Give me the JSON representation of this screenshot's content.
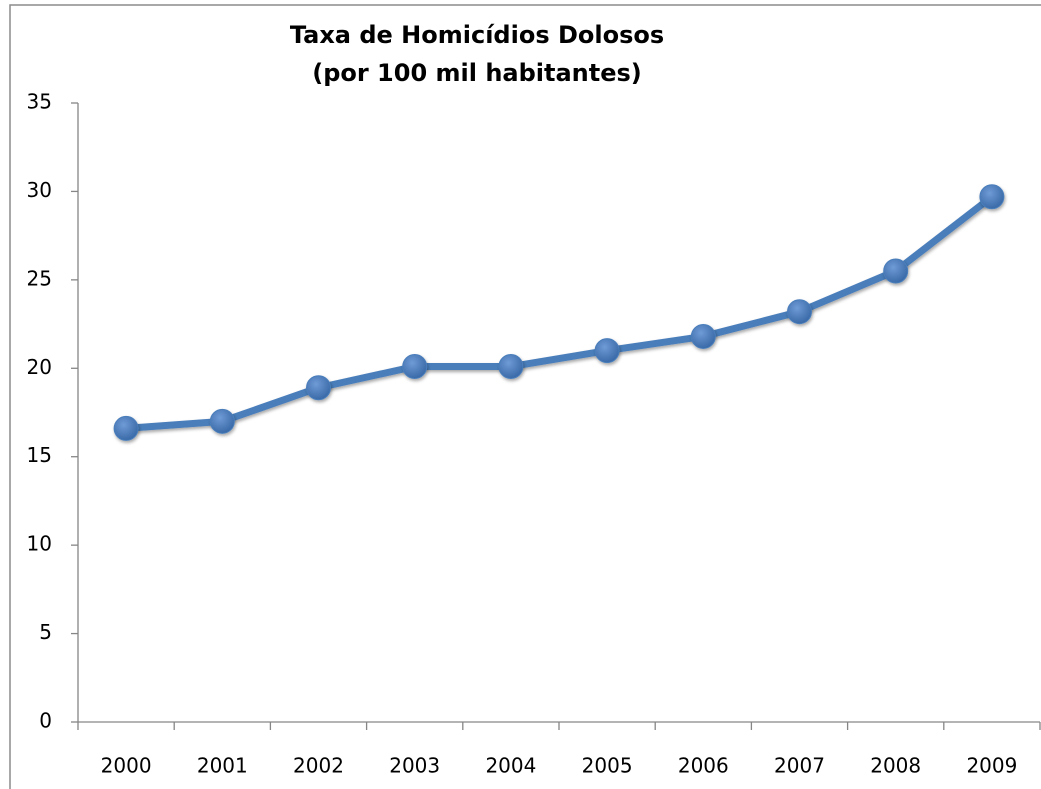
{
  "chart_data": {
    "type": "line",
    "title": "Taxa de Homicídios Dolosos",
    "subtitle": "(por 100 mil habitantes)",
    "categories": [
      "2000",
      "2001",
      "2002",
      "2003",
      "2004",
      "2005",
      "2006",
      "2007",
      "2008",
      "2009"
    ],
    "series": [
      {
        "name": "Taxa de Homicídios Dolosos",
        "color": "#4a7ebb",
        "values": [
          16.6,
          17.0,
          18.9,
          20.1,
          20.1,
          21.0,
          21.8,
          23.2,
          25.5,
          29.7
        ]
      }
    ],
    "ylim": [
      0,
      35
    ],
    "yticks": [
      0,
      5,
      10,
      15,
      20,
      25,
      30,
      35
    ],
    "grid": false,
    "legend": false
  }
}
